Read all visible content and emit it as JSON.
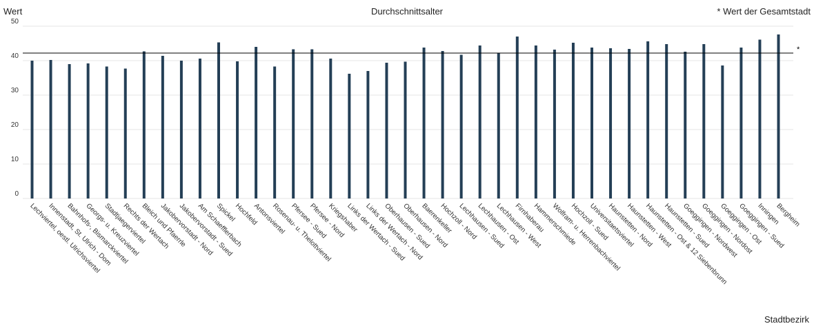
{
  "chart_data": {
    "type": "bar",
    "title": "Durchschnittsalter",
    "ylabel": "Wert",
    "xlabel": "Stadtbezirk",
    "legend_note": "* Wert der Gesamtstadt",
    "reference_marker": "*",
    "reference_value": 42.2,
    "ylim": [
      0,
      50
    ],
    "yticks": [
      0,
      10,
      20,
      30,
      40,
      50
    ],
    "grid": true,
    "bar_color": "#243f56",
    "categories": [
      "Lechviertel, oestl. Ulrichsviertel",
      "Innenstadt, St. Ulrich - Dom",
      "Bahnhofs-, Bismarckviertel",
      "Georgs- u. Kreuzviertel",
      "Stadtjaegerviertel",
      "Rechts der Wertach",
      "Bleich und Pfaerrle",
      "Jakobervorstadt - Nord",
      "Jakobervorstadt - Sued",
      "Am Schaefflerbach",
      "Spickel",
      "Hochfeld",
      "Antonsviertel",
      "Rosenau- u. Thelottviertel",
      "Pfersee - Sued",
      "Pfersee - Nord",
      "Kriegshaber",
      "Links der Wertach - Sued",
      "Links der Wertach - Nord",
      "Oberhausen - Sued",
      "Oberhausen - Nord",
      "Baerenkeller",
      "Hochzoll - Nord",
      "Lechhausen - Sued",
      "Lechhausen - Ost",
      "Lechhausen - West",
      "Firnhaberau",
      "Hammerschmiede",
      "Wolfram- u. Herrenbachviertel",
      "Hochzoll - Sued",
      "Universitaetsviertel",
      "Haunstetten - Nord",
      "Haunstetten - West",
      "Haunstetten - Ost & 12 Siebenbrunn",
      "Haunstetten - Sued",
      "Goeggingen - Nordwest",
      "Goeggingen - Nordost",
      "Goeggingen - Ost",
      "Goeggingen - Sued",
      "Inningen",
      "Bergheim"
    ],
    "values": [
      40.0,
      40.2,
      39.0,
      39.2,
      38.3,
      37.7,
      42.7,
      41.4,
      40.0,
      40.6,
      45.3,
      39.8,
      44.0,
      38.3,
      43.3,
      43.3,
      40.6,
      36.2,
      37.0,
      39.4,
      39.7,
      43.8,
      42.8,
      41.7,
      44.4,
      42.2,
      47.0,
      44.4,
      43.2,
      45.2,
      43.8,
      43.6,
      43.4,
      45.6,
      44.8,
      42.6,
      44.8,
      38.6,
      43.8,
      46.1,
      47.6
    ]
  }
}
